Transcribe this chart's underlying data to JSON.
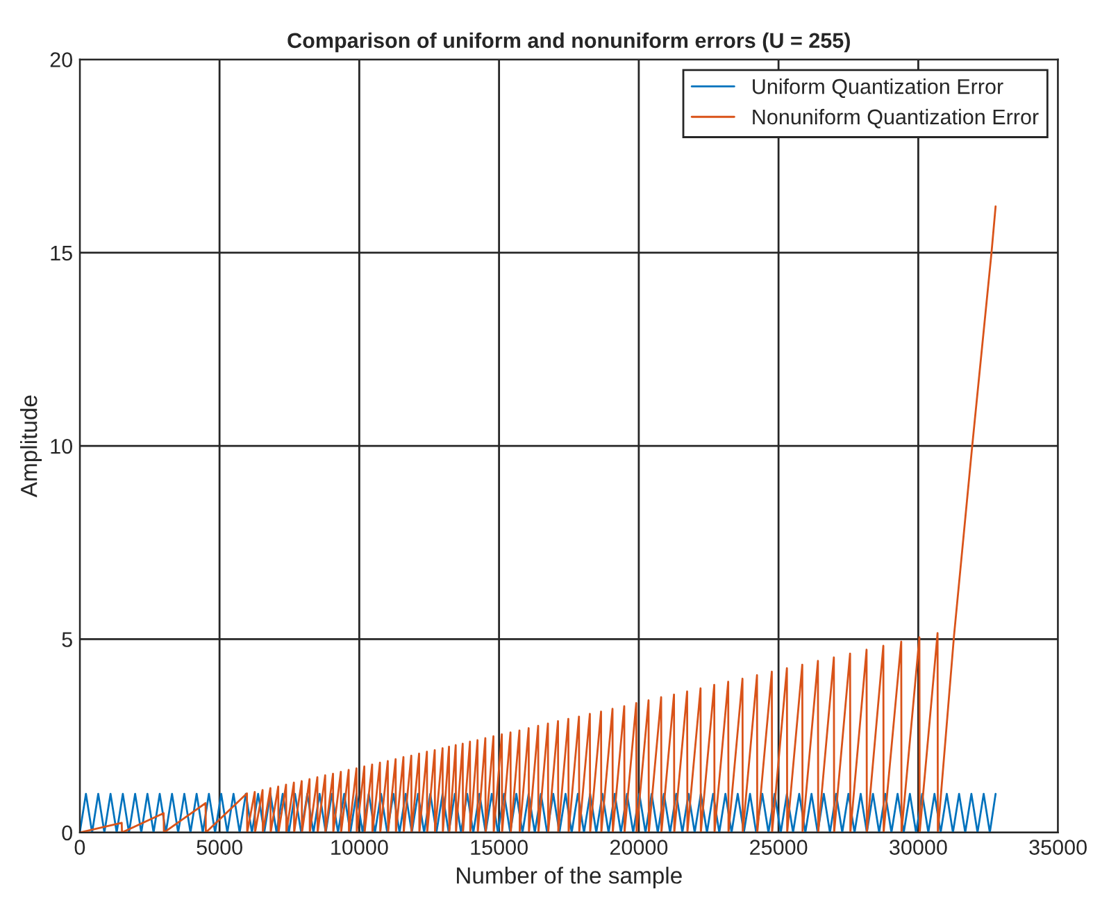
{
  "chart_data": {
    "type": "line",
    "title": "Comparison of uniform and nonuniform errors (U = 255)",
    "xlabel": "Number of the sample",
    "ylabel": "Amplitude",
    "xlim": [
      0,
      35000
    ],
    "xticks": [
      0,
      5000,
      10000,
      15000,
      20000,
      25000,
      30000,
      35000
    ],
    "ylim": [
      0,
      20
    ],
    "yticks": [
      0,
      5,
      10,
      15,
      20
    ],
    "grid": true,
    "legend": "top right",
    "marker": "none",
    "line_style": "solid",
    "series": [
      {
        "name": "Uniform Quantization Error",
        "color": "#0072bd",
        "x": [
          0,
          220,
          440,
          660,
          880,
          1100,
          1320,
          1540,
          1760,
          1980,
          2200,
          2420,
          2640,
          2860,
          3080,
          3300,
          3520,
          3740,
          3960,
          4180,
          4400,
          4620,
          4840,
          5060,
          5280,
          5500,
          5720,
          5940,
          6160,
          6380,
          6600,
          6820,
          7040,
          7260,
          7480,
          7700,
          7920,
          8140,
          8360,
          8580,
          8800,
          9020,
          9240,
          9460,
          9680,
          9900,
          10120,
          10340,
          10560,
          10780,
          11000,
          11220,
          11440,
          11660,
          11880,
          12100,
          12320,
          12540,
          12760,
          12980,
          13200,
          13420,
          13640,
          13860,
          14080,
          14300,
          14520,
          14740,
          14960,
          15180,
          15400,
          15620,
          15840,
          16060,
          16280,
          16500,
          16720,
          16940,
          17160,
          17380,
          17600,
          17820,
          18040,
          18260,
          18480,
          18700,
          18920,
          19140,
          19360,
          19580,
          19800,
          20020,
          20240,
          20460,
          20680,
          20900,
          21120,
          21340,
          21560,
          21780,
          22000,
          22220,
          22440,
          22660,
          22880,
          23100,
          23320,
          23540,
          23760,
          23980,
          24200,
          24420,
          24640,
          24860,
          25080,
          25300,
          25520,
          25740,
          25960,
          26180,
          26400,
          26620,
          26840,
          27060,
          27280,
          27500,
          27720,
          27940,
          28160,
          28380,
          28600,
          28820,
          29040,
          29260,
          29480,
          29700,
          29920,
          30140,
          30360,
          30580,
          30800,
          31020,
          31240,
          31460,
          31680,
          31900,
          32120,
          32340,
          32560,
          32767
        ],
        "values": [
          0,
          1,
          0,
          1,
          0,
          1,
          0,
          1,
          0,
          1,
          0,
          1,
          0,
          1,
          0,
          1,
          0,
          1,
          0,
          1,
          0,
          1,
          0,
          1,
          0,
          1,
          0,
          1,
          0,
          1,
          0,
          1,
          0,
          1,
          0,
          1,
          0,
          1,
          0,
          1,
          0,
          1,
          0,
          1,
          0,
          1,
          0,
          1,
          0,
          1,
          0,
          1,
          0,
          1,
          0,
          1,
          0,
          1,
          0,
          1,
          0,
          1,
          0,
          1,
          0,
          1,
          0,
          1,
          0,
          1,
          0,
          1,
          0,
          1,
          0,
          1,
          0,
          1,
          0,
          1,
          0,
          1,
          0,
          1,
          0,
          1,
          0,
          1,
          0,
          1,
          0,
          1,
          0,
          1,
          0,
          1,
          0,
          1,
          0,
          1,
          0,
          1,
          0,
          1,
          0,
          1,
          0,
          1,
          0,
          1,
          0,
          1,
          0,
          1,
          0,
          1,
          0,
          1,
          0,
          1,
          0,
          1,
          0,
          1,
          0,
          1,
          0,
          1,
          0,
          1,
          0,
          1,
          0,
          1,
          0,
          1,
          0,
          1,
          0,
          1,
          0,
          1,
          0,
          1,
          0,
          1,
          0,
          1,
          0,
          1
        ]
      },
      {
        "name": "Nonuniform Quantization Error",
        "color": "#d95319",
        "x": [
          0,
          1500,
          1510,
          3000,
          3010,
          4500,
          4510,
          5980,
          5990,
          6260,
          6270,
          6540,
          6550,
          6820,
          6830,
          7100,
          7110,
          7380,
          7390,
          7660,
          7670,
          7940,
          7950,
          8220,
          8230,
          8500,
          8510,
          8780,
          8790,
          9060,
          9070,
          9340,
          9350,
          9620,
          9630,
          9900,
          9910,
          10180,
          10190,
          10460,
          10470,
          10740,
          10750,
          11020,
          11030,
          11300,
          11310,
          11580,
          11590,
          11860,
          11870,
          12140,
          12150,
          12420,
          12430,
          12700,
          12710,
          12980,
          12990,
          13210,
          13220,
          13450,
          13460,
          13700,
          13710,
          13960,
          13970,
          14230,
          14240,
          14510,
          14520,
          14800,
          14810,
          15100,
          15110,
          15410,
          15420,
          15730,
          15740,
          16060,
          16070,
          16400,
          16410,
          16750,
          16760,
          17110,
          17120,
          17480,
          17490,
          17860,
          17870,
          18250,
          18260,
          18650,
          18660,
          19060,
          19070,
          19480,
          19490,
          19910,
          19920,
          20350,
          20360,
          20800,
          20810,
          21260,
          21270,
          21730,
          21740,
          22210,
          22220,
          22700,
          22710,
          23200,
          23210,
          23710,
          23720,
          24230,
          24240,
          24760,
          24770,
          25300,
          25310,
          25850,
          25860,
          26410,
          26420,
          26980,
          26990,
          27560,
          27570,
          28150,
          28160,
          28750,
          28760,
          29390,
          29400,
          30040,
          30050,
          30690,
          30700,
          31280,
          31930,
          32620,
          32767
        ],
        "values": [
          0,
          0.25,
          0,
          0.5,
          0,
          0.76,
          0,
          1.01,
          0,
          1.05,
          0,
          1.1,
          0,
          1.15,
          0,
          1.19,
          0,
          1.24,
          0,
          1.29,
          0,
          1.33,
          0,
          1.38,
          0,
          1.43,
          0,
          1.48,
          0,
          1.52,
          0,
          1.57,
          0,
          1.62,
          0,
          1.66,
          0,
          1.71,
          0,
          1.76,
          0,
          1.81,
          0,
          1.85,
          0,
          1.9,
          0,
          1.95,
          0,
          1.99,
          0,
          2.04,
          0,
          2.09,
          0,
          2.13,
          0,
          2.18,
          0,
          2.22,
          0,
          2.26,
          0,
          2.3,
          0,
          2.35,
          0,
          2.39,
          0,
          2.44,
          0,
          2.49,
          0,
          2.54,
          0,
          2.59,
          0,
          2.64,
          0,
          2.7,
          0,
          2.76,
          0,
          2.82,
          0,
          2.88,
          0,
          2.94,
          0,
          3.0,
          0,
          3.07,
          0,
          3.13,
          0,
          3.2,
          0,
          3.27,
          0,
          3.35,
          0,
          3.42,
          0,
          3.5,
          0,
          3.57,
          0,
          3.65,
          0,
          3.73,
          0,
          3.82,
          0,
          3.9,
          0,
          3.98,
          0,
          4.07,
          0,
          4.16,
          0,
          4.25,
          0,
          4.34,
          0,
          4.44,
          0,
          4.53,
          0,
          4.63,
          0,
          4.73,
          0,
          4.83,
          0,
          4.94,
          0,
          5.05,
          0,
          5.16,
          0,
          5.1,
          10,
          15,
          16.2
        ]
      }
    ]
  }
}
